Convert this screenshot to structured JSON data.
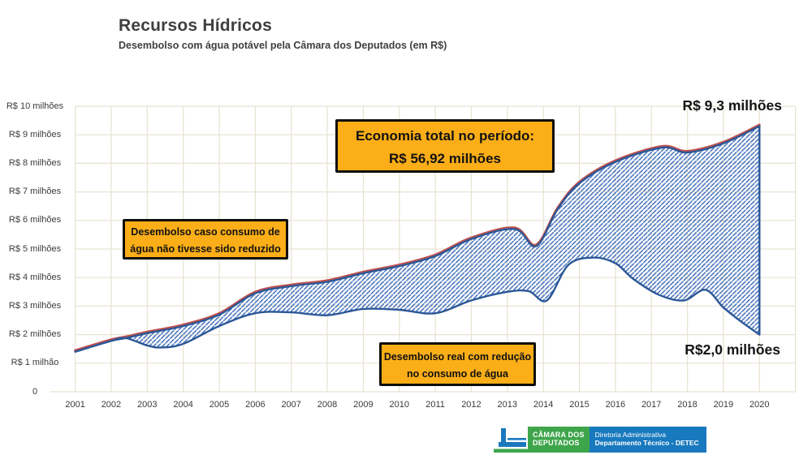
{
  "page": {
    "title": "Recursos Hídricos",
    "subtitle": "Desembolso com água potável pela Câmara dos Deputados (em R$)"
  },
  "chart_data": {
    "type": "area",
    "title": "Recursos Hídricos",
    "subtitle": "Desembolso com água potável pela Câmara dos Deputados (em R$)",
    "unit": "R$ milhões",
    "grid": true,
    "legend_position": "annotations-on-chart",
    "x_axis": {
      "years": [
        2001,
        2002,
        2003,
        2004,
        2005,
        2006,
        2007,
        2008,
        2009,
        2010,
        2011,
        2012,
        2013,
        2014,
        2015,
        2016,
        2017,
        2018,
        2019,
        2020
      ]
    },
    "y_axis": {
      "labels": [
        "R$ 10 milhões",
        "R$ 9 milhões",
        "R$ 8 milhões",
        "R$ 7 milhões",
        "R$ 6 milhões",
        "R$ 5 milhões",
        "R$ 4 milhões",
        "R$ 3 milhões",
        "R$ 2 milhões",
        "R$ 1 milhão",
        "0"
      ],
      "values": [
        10,
        9,
        8,
        7,
        6,
        5,
        4,
        3,
        2,
        1,
        0
      ],
      "min": 0,
      "max": 10
    },
    "series": [
      {
        "id": "sem_reducao",
        "name": "Desembolso caso consumo de água não tivesse sido reduzido",
        "color": "#C0504D",
        "end_value_millions": 9.3,
        "end_label": "R$ 9,3 milhões",
        "points": [
          [
            2001,
            1.4
          ],
          [
            2002,
            1.78
          ],
          [
            2002.4,
            1.88
          ],
          [
            2003,
            2.05
          ],
          [
            2004,
            2.3
          ],
          [
            2005,
            2.7
          ],
          [
            2006,
            3.45
          ],
          [
            2007,
            3.7
          ],
          [
            2008,
            3.85
          ],
          [
            2009,
            4.15
          ],
          [
            2010,
            4.4
          ],
          [
            2011,
            4.75
          ],
          [
            2012,
            5.35
          ],
          [
            2013.2,
            5.7
          ],
          [
            2013.8,
            5.1
          ],
          [
            2014.4,
            6.4
          ],
          [
            2015,
            7.3
          ],
          [
            2016,
            8.05
          ],
          [
            2017.3,
            8.55
          ],
          [
            2018,
            8.38
          ],
          [
            2019,
            8.7
          ],
          [
            2020,
            9.3
          ]
        ]
      },
      {
        "id": "real",
        "name": "Desembolso real com redução no consumo de água",
        "color": "#2B5797",
        "end_value_millions": 2.0,
        "end_label": "R$2,0 milhões",
        "points": [
          [
            2001,
            1.4
          ],
          [
            2002,
            1.78
          ],
          [
            2002.4,
            1.88
          ],
          [
            2003,
            1.62
          ],
          [
            2003.4,
            1.55
          ],
          [
            2004,
            1.68
          ],
          [
            2005,
            2.3
          ],
          [
            2006,
            2.75
          ],
          [
            2007,
            2.78
          ],
          [
            2008,
            2.68
          ],
          [
            2009,
            2.9
          ],
          [
            2010,
            2.87
          ],
          [
            2011,
            2.75
          ],
          [
            2012,
            3.2
          ],
          [
            2013,
            3.5
          ],
          [
            2013.6,
            3.52
          ],
          [
            2014.1,
            3.2
          ],
          [
            2014.7,
            4.45
          ],
          [
            2015.4,
            4.7
          ],
          [
            2016,
            4.5
          ],
          [
            2016.5,
            3.95
          ],
          [
            2017.2,
            3.4
          ],
          [
            2017.9,
            3.2
          ],
          [
            2018.5,
            3.57
          ],
          [
            2019,
            2.95
          ],
          [
            2019.5,
            2.45
          ],
          [
            2020,
            2.0
          ]
        ]
      }
    ],
    "savings_total": "R$ 56,92 milhões"
  },
  "annotations": {
    "economia": {
      "line1": "Economia total no período:",
      "line2": "R$ 56,92 milhões"
    },
    "caso": {
      "line1": "Desembolso caso consumo de",
      "line2": "água não tivesse sido reduzido"
    },
    "real": {
      "line1": "Desembolso real com redução",
      "line2": "no consumo de água"
    },
    "end_top": "R$ 9,3 milhões",
    "end_bottom": "R$2,0 milhões"
  },
  "footer": {
    "org_line1": "CÂMARA DOS",
    "org_line2": "DEPUTADOS",
    "dept_line1": "Diretoria Administrativa",
    "dept_line2": "Departamento Técnico - DETEC"
  },
  "colors": {
    "grid": "#E7E2D2",
    "hatch": "#4C78BE",
    "band_outline": "#2B5797",
    "line_no_reduction": "#C0504D",
    "annotation_bg": "#FBAE17",
    "footer_green": "#3FA54B",
    "footer_blue": "#1879BE",
    "logo_blue": "#1B78BE"
  }
}
